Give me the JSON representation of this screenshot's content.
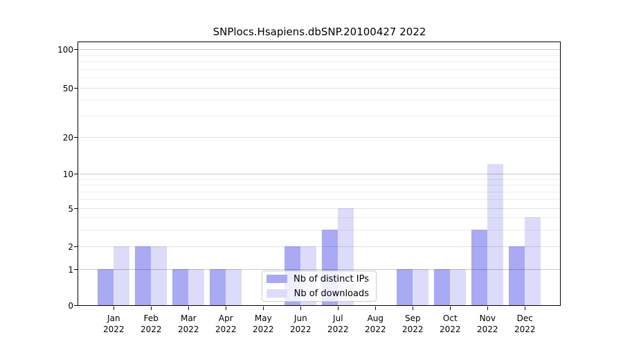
{
  "chart_data": {
    "type": "bar",
    "title": "SNPlocs.Hsapiens.dbSNP.20100427 2022",
    "categories": [
      "Jan",
      "Feb",
      "Mar",
      "Apr",
      "May",
      "Jun",
      "Jul",
      "Aug",
      "Sep",
      "Oct",
      "Nov",
      "Dec"
    ],
    "year_label": "2022",
    "series": [
      {
        "name": "Nb of distinct IPs",
        "color": "#a9a9f4",
        "values": [
          1,
          2,
          1,
          1,
          0,
          2,
          3,
          0,
          1,
          1,
          3,
          2
        ]
      },
      {
        "name": "Nb of downloads",
        "color": "#dcdcfa",
        "values": [
          2,
          2,
          1,
          1,
          0,
          2,
          5,
          0,
          1,
          1,
          12,
          4
        ]
      }
    ],
    "y_axis": {
      "tick_values": [
        0,
        1,
        2,
        5,
        10,
        20,
        50,
        100
      ],
      "tick_labels": [
        "0",
        "1",
        "2",
        "5",
        "10",
        "20",
        "50",
        "100"
      ],
      "scale": "log-like",
      "minor_grid_values": [
        3,
        4,
        6,
        7,
        8,
        9,
        30,
        40,
        60,
        70,
        80,
        90
      ]
    },
    "legend": {
      "position": "lower-center-inside",
      "entries": [
        "Nb of distinct IPs",
        "Nb of downloads"
      ]
    },
    "grid": "horizontal"
  }
}
